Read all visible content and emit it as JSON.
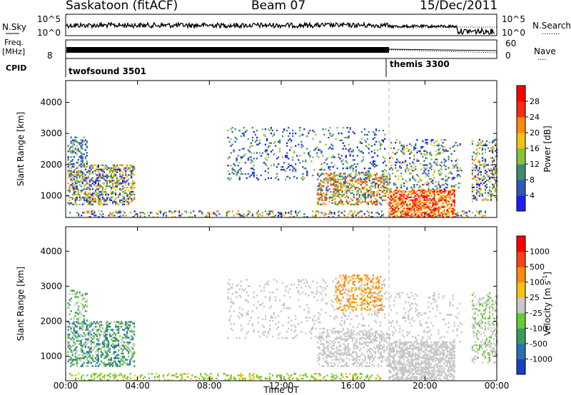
{
  "header": {
    "station": "Saskatoon (fitACF)",
    "beam": "Beam 07",
    "date": "15/Dec/2011"
  },
  "noise_panel": {
    "left_label": "N.Sky",
    "right_label": "N.Search",
    "left_ticks": [
      "10^5",
      "10^0"
    ],
    "right_ticks": [
      "10^5",
      "10^0"
    ],
    "right_legend_line": "........"
  },
  "freq_panel": {
    "left_label_line1": "Freq.",
    "left_label_line2": "[MHz]",
    "left_tick": "8",
    "right_label": "Nave",
    "right_ticks": [
      "60",
      "0"
    ],
    "right_legend_line": "...."
  },
  "cpid_panel": {
    "label": "CPID",
    "programs": [
      {
        "name": "twofsound 3501",
        "start_hour": 0
      },
      {
        "name": "themis 3300",
        "start_hour": 18
      }
    ]
  },
  "chart_data": [
    {
      "type": "heatmap",
      "panel": "power",
      "ylabel": "Slant Range [km]",
      "yticks": [
        1000,
        2000,
        3000,
        4000
      ],
      "ylim": [
        300,
        4700
      ],
      "xlim_hours": [
        0,
        24
      ],
      "colorbar_label": "Power [dB]",
      "colorbar_ticks": [
        "4",
        "8",
        "12",
        "16",
        "20",
        "24",
        "28"
      ],
      "colorbar_colors": [
        "#1c1cff",
        "#2f57b8",
        "#3d8d6d",
        "#86c23a",
        "#f2c214",
        "#ff8a10",
        "#ff2a10",
        "#ff0000"
      ]
    },
    {
      "type": "heatmap",
      "panel": "velocity",
      "ylabel": "Slant Range [km]",
      "yticks": [
        1000,
        2000,
        3000,
        4000
      ],
      "ylim": [
        300,
        4700
      ],
      "xlim_hours": [
        0,
        24
      ],
      "colorbar_label": "Velocity [m s",
      "colorbar_label_sup": "-1",
      "colorbar_label_end": "]",
      "colorbar_ticks": [
        "1000",
        "500",
        "100",
        "25",
        "-25",
        "-100",
        "-500",
        "-1000"
      ],
      "colorbar_colors": [
        "#1a3fc0",
        "#2a70b0",
        "#3a9a60",
        "#66cc33",
        "#c8c8c8",
        "#f2c214",
        "#ff8a10",
        "#ff4010",
        "#ff0000"
      ]
    }
  ],
  "time_axis": {
    "ticks": [
      "00:00",
      "04:00",
      "08:00",
      "12:00",
      "16:00",
      "20:00",
      "00:00"
    ],
    "label": "Time UT"
  }
}
